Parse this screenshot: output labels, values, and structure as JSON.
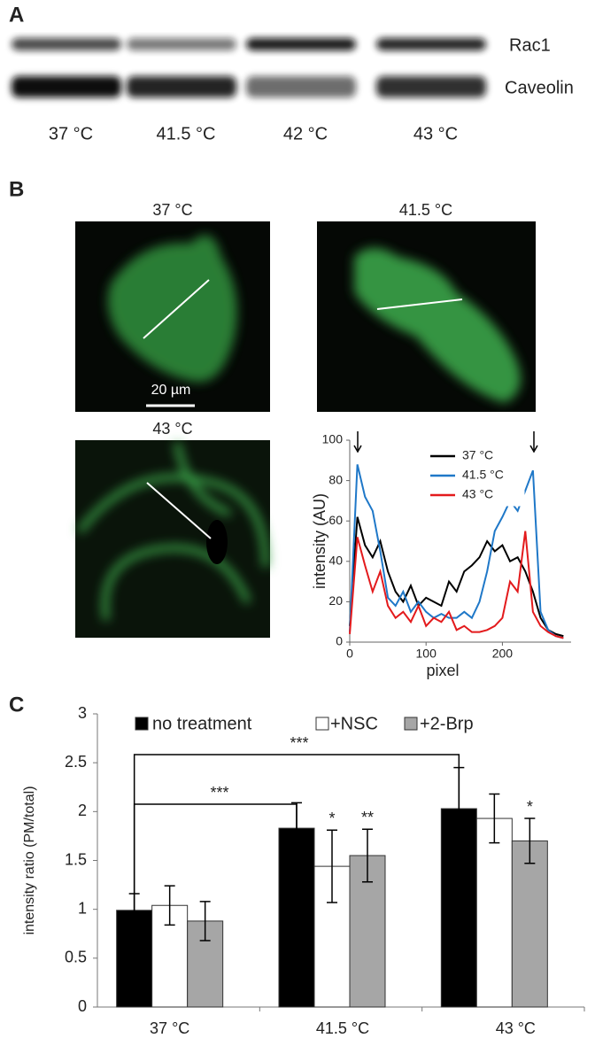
{
  "panel_labels": [
    "A",
    "B",
    "C"
  ],
  "blot": {
    "bands": [
      "Rac1",
      "Caveolin"
    ],
    "lanes": [
      "37 °C",
      "41.5 °C",
      "42 °C",
      "43 °C"
    ]
  },
  "images": [
    {
      "title": "37 °C"
    },
    {
      "title": "41.5 °C"
    },
    {
      "title": "43 °C"
    }
  ],
  "scale_bar": "20 µm",
  "chart_data": [
    {
      "type": "line",
      "xlabel": "pixel",
      "ylabel": "intensity (AU)",
      "x": [
        0,
        10,
        20,
        30,
        40,
        50,
        60,
        70,
        80,
        90,
        100,
        110,
        120,
        130,
        140,
        150,
        160,
        170,
        180,
        190,
        200,
        210,
        220,
        230,
        240,
        250,
        260,
        270,
        280
      ],
      "series": [
        {
          "name": "37 °C",
          "color": "#000000",
          "values": [
            8,
            62,
            48,
            42,
            50,
            35,
            25,
            20,
            28,
            18,
            22,
            20,
            18,
            30,
            25,
            35,
            38,
            42,
            50,
            45,
            48,
            40,
            42,
            35,
            25,
            12,
            6,
            4,
            3
          ]
        },
        {
          "name": "41.5 °C",
          "color": "#1f78c8",
          "values": [
            5,
            88,
            72,
            65,
            45,
            22,
            18,
            25,
            15,
            20,
            15,
            12,
            14,
            12,
            12,
            15,
            12,
            20,
            35,
            55,
            62,
            70,
            65,
            75,
            85,
            15,
            6,
            3,
            2
          ]
        },
        {
          "name": "43 °C",
          "color": "#e31a1c",
          "values": [
            4,
            52,
            38,
            25,
            35,
            18,
            12,
            15,
            10,
            18,
            8,
            12,
            10,
            15,
            6,
            8,
            5,
            5,
            6,
            8,
            12,
            30,
            25,
            55,
            15,
            8,
            5,
            3,
            2
          ]
        }
      ],
      "xlim": [
        0,
        290
      ],
      "xticks": [
        0,
        100,
        200
      ],
      "ylim": [
        0,
        100
      ],
      "yticks": [
        0,
        20,
        40,
        60,
        80,
        100
      ],
      "legend": "upper right"
    },
    {
      "type": "bar",
      "ylabel": "intensity ratio (PM/total)",
      "categories": [
        "37 °C",
        "41.5 °C",
        "43 °C"
      ],
      "series": [
        {
          "name": "no treatment",
          "color": "#000000",
          "values": [
            0.99,
            1.83,
            2.03
          ],
          "errors": [
            0.17,
            0.26,
            0.42
          ],
          "labels": [
            null,
            null,
            null
          ]
        },
        {
          "name": "+NSC",
          "color": "#ffffff",
          "values": [
            1.04,
            1.44,
            1.93
          ],
          "errors": [
            0.2,
            0.37,
            0.25
          ],
          "labels": [
            null,
            "*",
            null
          ]
        },
        {
          "name": "+2-Brp",
          "color": "#a6a6a6",
          "values": [
            0.88,
            1.55,
            1.7
          ],
          "errors": [
            0.2,
            0.27,
            0.23
          ],
          "labels": [
            null,
            "**",
            "*"
          ]
        }
      ],
      "annotations": [
        "***",
        "***"
      ],
      "ylim": [
        0,
        3
      ],
      "yticks": [
        0,
        0.5,
        1,
        1.5,
        2,
        2.5,
        3
      ]
    }
  ]
}
